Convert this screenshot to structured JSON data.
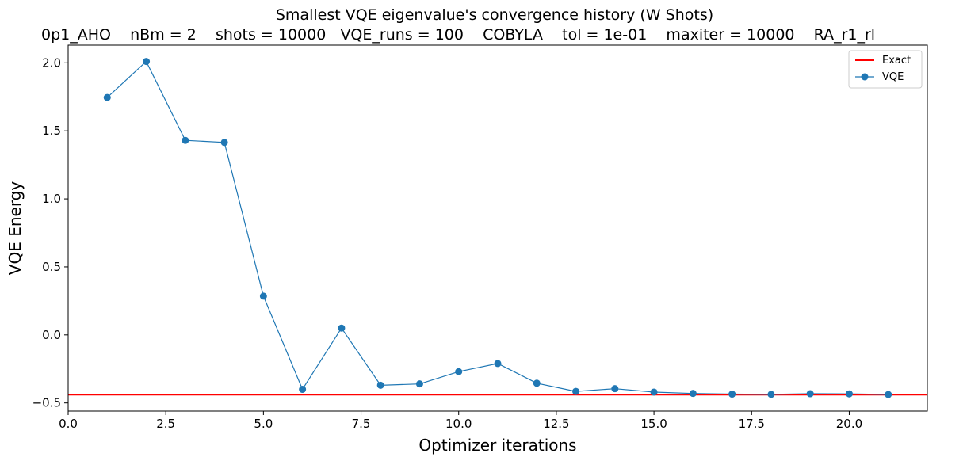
{
  "chart_data": {
    "type": "line",
    "title": "Smallest VQE eigenvalue's convergence history (W Shots)",
    "subtitle": "0p1_AHO    nBm = 2    shots = 10000   VQE_runs = 100    COBYLA    tol = 1e-01    maxiter = 10000    RA_r1_rl",
    "xlabel": "Optimizer iterations",
    "ylabel": "VQE Energy",
    "xlim": [
      0,
      22
    ],
    "ylim": [
      -0.56,
      2.13
    ],
    "xticks": [
      0.0,
      2.5,
      5.0,
      7.5,
      10.0,
      12.5,
      15.0,
      17.5,
      20.0
    ],
    "xtick_labels": [
      "0.0",
      "2.5",
      "5.0",
      "7.5",
      "10.0",
      "12.5",
      "15.0",
      "17.5",
      "20.0"
    ],
    "yticks": [
      -0.5,
      0.0,
      0.5,
      1.0,
      1.5,
      2.0
    ],
    "ytick_labels": [
      "−0.5",
      "0.0",
      "0.5",
      "1.0",
      "1.5",
      "2.0"
    ],
    "grid": false,
    "legend_position": "top-right",
    "series": [
      {
        "name": "VQE",
        "color": "#1f77b4",
        "marker": "circle",
        "x": [
          1,
          2,
          3,
          4,
          5,
          6,
          7,
          8,
          9,
          10,
          11,
          12,
          13,
          14,
          15,
          16,
          17,
          18,
          19,
          20,
          21
        ],
        "y": [
          1.745,
          2.01,
          1.43,
          1.415,
          0.285,
          -0.4,
          0.05,
          -0.37,
          -0.36,
          -0.27,
          -0.21,
          -0.355,
          -0.415,
          -0.395,
          -0.42,
          -0.43,
          -0.435,
          -0.437,
          -0.432,
          -0.433,
          -0.438
        ]
      }
    ],
    "reference_lines": [
      {
        "name": "Exact",
        "color": "#ff0000",
        "y": -0.44
      }
    ]
  }
}
